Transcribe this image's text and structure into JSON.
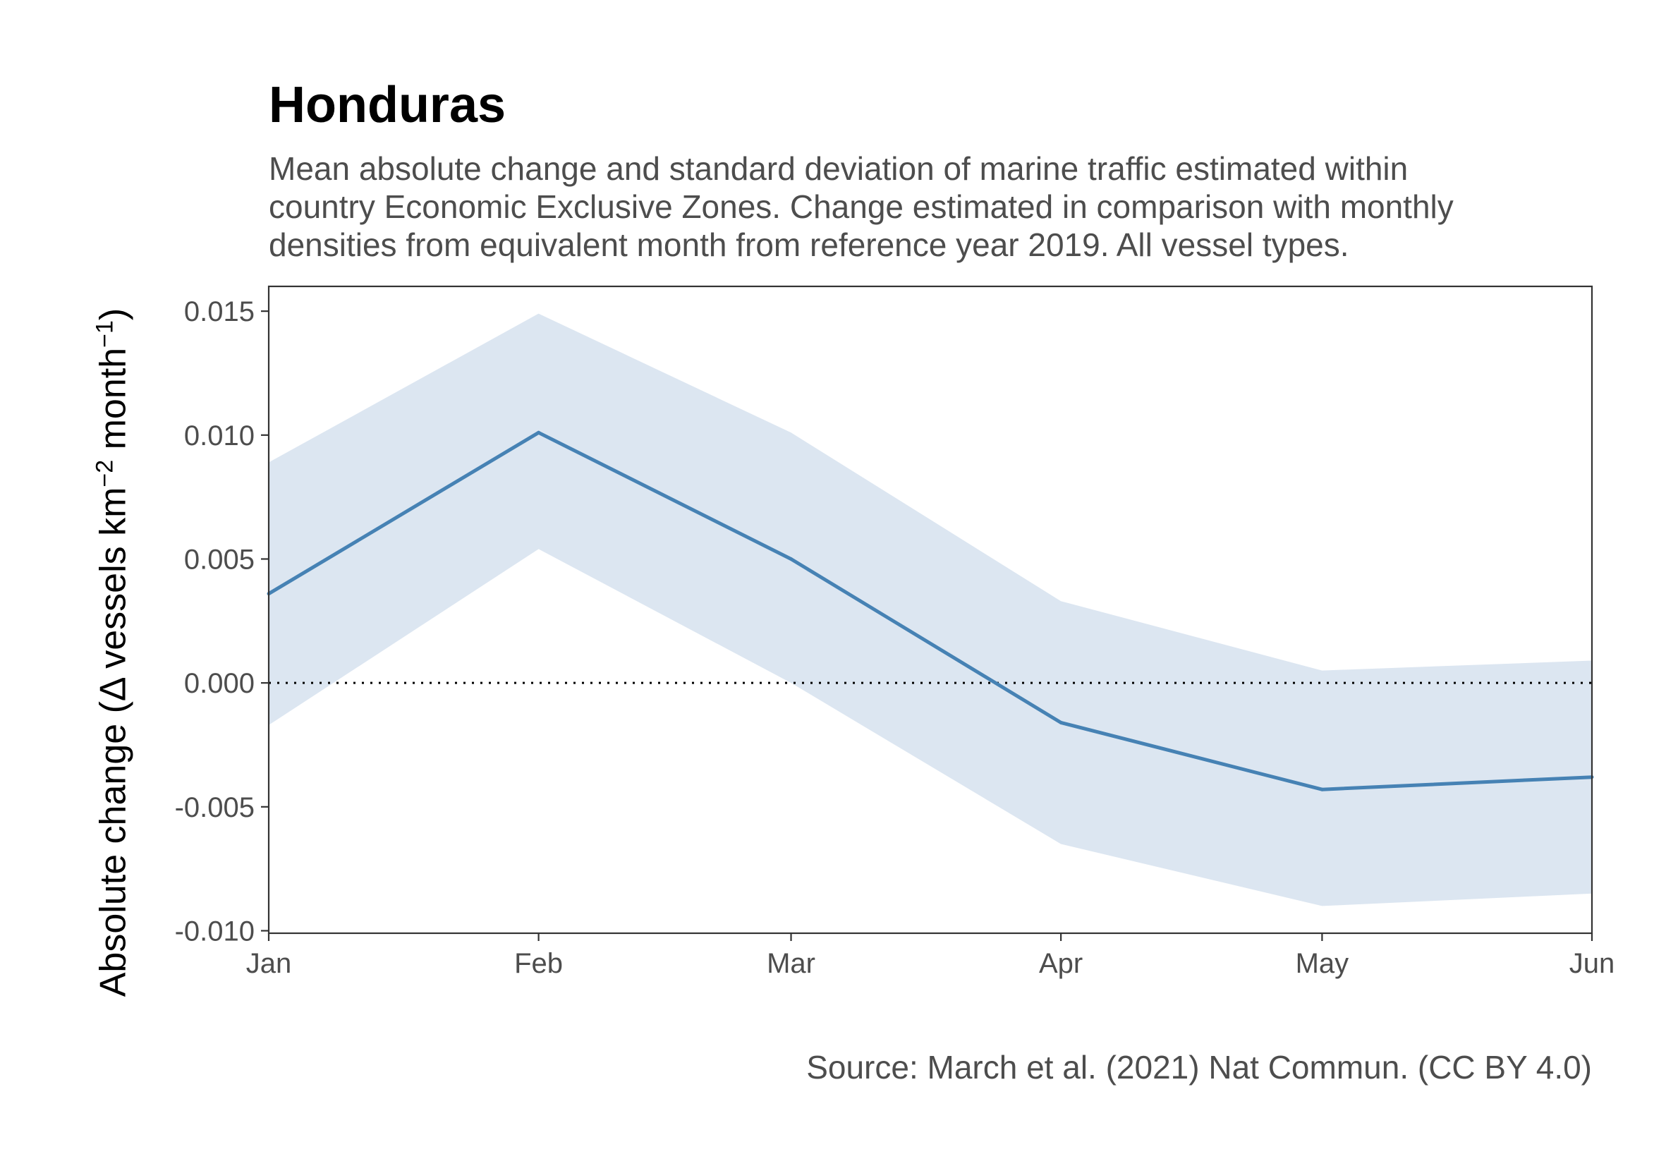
{
  "chart_data": {
    "type": "line",
    "title": "Honduras",
    "subtitle": "Mean absolute change and standard deviation of marine traffic estimated within\ncountry Economic Exclusive Zones. Change estimated in comparison with monthly\ndensities from equivalent month from reference year 2019. All vessel types.",
    "caption": "Source: March et al. (2021) Nat Commun. (CC BY 4.0)",
    "ylabel_main": "Absolute change (Δ vessels km",
    "ylabel_exp1": "−2",
    "ylabel_mid": " month",
    "ylabel_exp2": "−1",
    "ylabel_end": ")",
    "xlabel": "",
    "categories": [
      "Jan",
      "Feb",
      "Mar",
      "Apr",
      "May",
      "Jun"
    ],
    "x_days": [
      1,
      32,
      61,
      92,
      122,
      153
    ],
    "mean": [
      0.0036,
      0.0101,
      0.005,
      -0.0016,
      -0.0043,
      -0.0038
    ],
    "lower": [
      -0.0017,
      0.0054,
      0.0,
      -0.0065,
      -0.009,
      -0.0085
    ],
    "upper": [
      0.0089,
      0.0149,
      0.0101,
      0.0033,
      0.0005,
      0.0009
    ],
    "yticks": [
      0.015,
      0.01,
      0.005,
      0.0,
      -0.005,
      -0.01
    ],
    "ytick_labels": [
      "0.015",
      "0.010",
      "0.005",
      "0.000",
      "-0.005",
      "-0.010"
    ],
    "ylim": [
      -0.0101,
      0.016
    ],
    "reference_line": 0,
    "colors": {
      "line": "#4682b4",
      "ribbon": "#dce6f1",
      "axis": "#333333",
      "reference": "#000000",
      "tick_text": "#4d4d4d"
    }
  }
}
